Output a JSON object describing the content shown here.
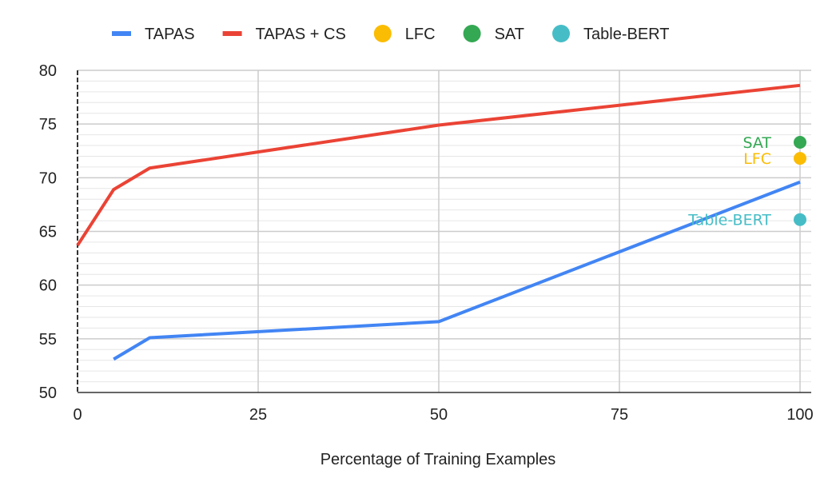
{
  "chart_data": {
    "type": "line",
    "title": "",
    "xlabel": "Percentage of Training Examples",
    "ylabel": "",
    "xlim": [
      0,
      100
    ],
    "ylim": [
      50,
      80
    ],
    "x_ticks": [
      0,
      25,
      50,
      75,
      100
    ],
    "y_ticks": [
      50,
      55,
      60,
      65,
      70,
      75,
      80
    ],
    "grid": true,
    "legend_position": "top",
    "series": [
      {
        "name": "TAPAS",
        "color": "#4285f4",
        "kind": "line",
        "x": [
          5,
          10,
          50,
          100
        ],
        "y": [
          53.1,
          55.1,
          56.6,
          69.6
        ]
      },
      {
        "name": "TAPAS + CS",
        "color": "#ea4335",
        "kind": "line",
        "x": [
          0,
          5,
          10,
          50,
          100
        ],
        "y": [
          63.7,
          68.9,
          70.9,
          74.9,
          78.6
        ]
      },
      {
        "name": "LFC",
        "color": "#fbbc04",
        "kind": "point",
        "x": [
          100
        ],
        "y": [
          71.8
        ],
        "label": "LFC"
      },
      {
        "name": "SAT",
        "color": "#34a853",
        "kind": "point",
        "x": [
          100
        ],
        "y": [
          73.3
        ],
        "label": "SAT"
      },
      {
        "name": "Table-BERT",
        "color": "#46bdc6",
        "kind": "point",
        "x": [
          100
        ],
        "y": [
          66.1
        ],
        "label": "Table-BERT"
      }
    ]
  }
}
